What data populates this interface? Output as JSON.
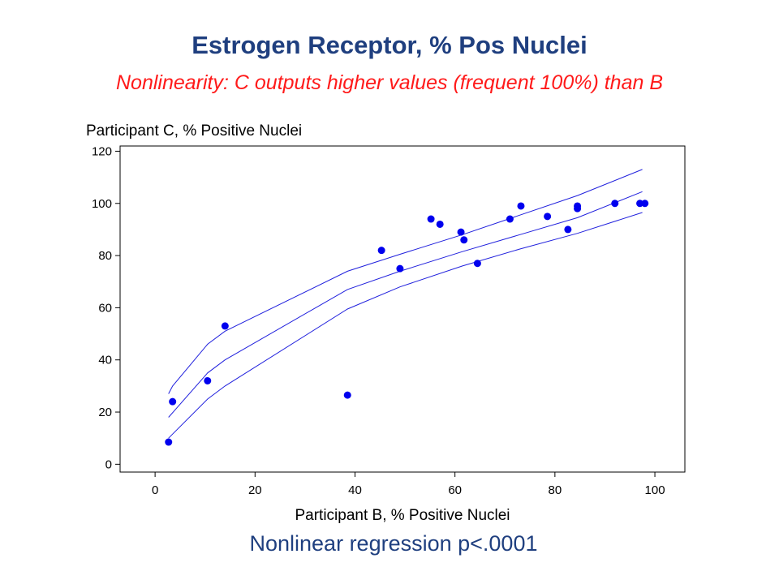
{
  "title": "Estrogen Receptor, % Pos Nuclei",
  "subtitle": "Nonlinearity: C outputs higher values (frequent 100%) than B",
  "footer": "Nonlinear regression p<.0001",
  "colors": {
    "title": "#1f3f7f",
    "subtitle": "#ff1a1a",
    "points": "#0000ee",
    "curves": "#2020dd"
  },
  "chart_data": {
    "type": "scatter",
    "xlabel": "Participant B, % Positive Nuclei",
    "ylabel": "Participant C, % Positive Nuclei",
    "xlim": [
      -7,
      106
    ],
    "ylim": [
      -3,
      122
    ],
    "xticks": [
      0,
      20,
      40,
      60,
      80,
      100
    ],
    "yticks": [
      0,
      20,
      40,
      60,
      80,
      100,
      120
    ],
    "grid": false,
    "points": [
      {
        "x": 2.7,
        "y": 8.5
      },
      {
        "x": 3.5,
        "y": 24
      },
      {
        "x": 10.5,
        "y": 32
      },
      {
        "x": 14,
        "y": 53
      },
      {
        "x": 38.5,
        "y": 26.5
      },
      {
        "x": 45.3,
        "y": 82
      },
      {
        "x": 49,
        "y": 75
      },
      {
        "x": 55.2,
        "y": 94
      },
      {
        "x": 57,
        "y": 92
      },
      {
        "x": 61.2,
        "y": 89
      },
      {
        "x": 61.8,
        "y": 86
      },
      {
        "x": 64.5,
        "y": 77
      },
      {
        "x": 71,
        "y": 94
      },
      {
        "x": 73.2,
        "y": 99
      },
      {
        "x": 78.5,
        "y": 95
      },
      {
        "x": 82.6,
        "y": 90
      },
      {
        "x": 84.5,
        "y": 99
      },
      {
        "x": 84.5,
        "y": 98
      },
      {
        "x": 92,
        "y": 100
      },
      {
        "x": 97,
        "y": 100
      },
      {
        "x": 98,
        "y": 100
      }
    ],
    "series": [
      {
        "values": [
          [
            2.7,
            18
          ],
          [
            10.5,
            35
          ],
          [
            14,
            40
          ],
          [
            38.5,
            67
          ],
          [
            49,
            74
          ],
          [
            61.5,
            81.5
          ],
          [
            73,
            88
          ],
          [
            84.5,
            94.5
          ],
          [
            97.5,
            104.5
          ]
        ]
      },
      {
        "values": [
          [
            2.7,
            27
          ],
          [
            3.5,
            30
          ],
          [
            10.5,
            46
          ],
          [
            14,
            51
          ],
          [
            38.5,
            74
          ],
          [
            49,
            80.5
          ],
          [
            61.5,
            88
          ],
          [
            73,
            95.5
          ],
          [
            84.5,
            103
          ],
          [
            97.5,
            113
          ]
        ]
      },
      {
        "values": [
          [
            2.7,
            10
          ],
          [
            10.5,
            25
          ],
          [
            14,
            30
          ],
          [
            38.5,
            59.5
          ],
          [
            49,
            68
          ],
          [
            61.5,
            76
          ],
          [
            73,
            82.5
          ],
          [
            84.5,
            88.5
          ],
          [
            97.5,
            96.5
          ]
        ]
      }
    ]
  }
}
